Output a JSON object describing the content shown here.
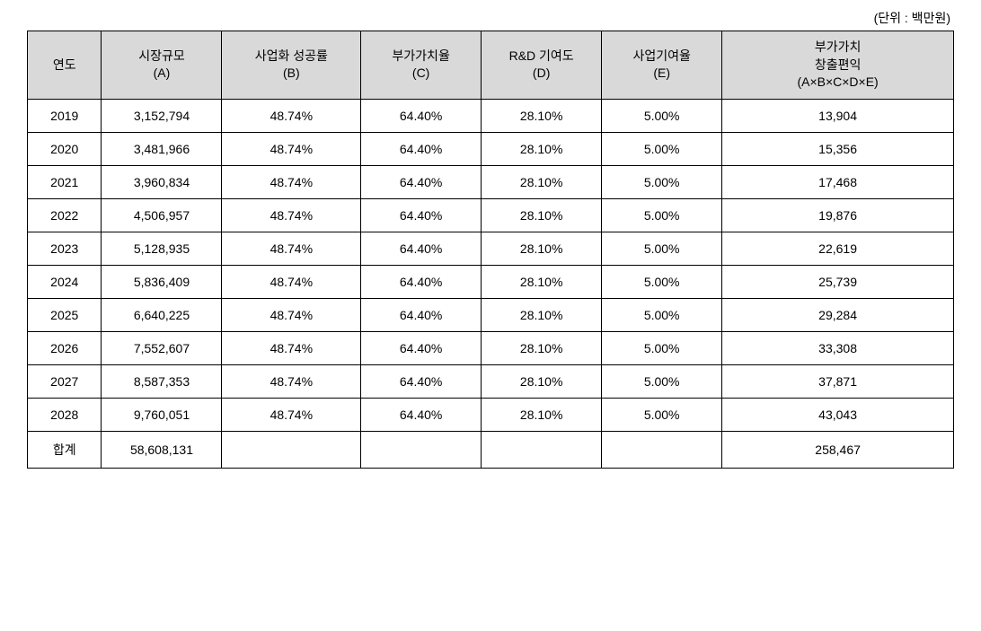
{
  "unit_label": "(단위 : 백만원)",
  "table": {
    "type": "table",
    "background_color": "#ffffff",
    "header_bg_color": "#d9d9d9",
    "border_color": "#000000",
    "text_color": "#000000",
    "font_size": 14,
    "columns": [
      {
        "key": "year",
        "label": "연도",
        "sublabel": "",
        "width": "8%"
      },
      {
        "key": "A",
        "label": "시장규모",
        "sublabel": "(A)",
        "width": "13%"
      },
      {
        "key": "B",
        "label": "사업화 성공률",
        "sublabel": "(B)",
        "width": "15%"
      },
      {
        "key": "C",
        "label": "부가가치율",
        "sublabel": "(C)",
        "width": "13%"
      },
      {
        "key": "D",
        "label": "R&D 기여도",
        "sublabel": "(D)",
        "width": "13%"
      },
      {
        "key": "E",
        "label": "사업기여율",
        "sublabel": "(E)",
        "width": "13%"
      },
      {
        "key": "F",
        "label": "부가가치",
        "sublabel": "창출편익",
        "subsublabel": "(A×B×C×D×E)",
        "width": "25%"
      }
    ],
    "rows": [
      {
        "year": "2019",
        "A": "3,152,794",
        "B": "48.74%",
        "C": "64.40%",
        "D": "28.10%",
        "E": "5.00%",
        "F": "13,904"
      },
      {
        "year": "2020",
        "A": "3,481,966",
        "B": "48.74%",
        "C": "64.40%",
        "D": "28.10%",
        "E": "5.00%",
        "F": "15,356"
      },
      {
        "year": "2021",
        "A": "3,960,834",
        "B": "48.74%",
        "C": "64.40%",
        "D": "28.10%",
        "E": "5.00%",
        "F": "17,468"
      },
      {
        "year": "2022",
        "A": "4,506,957",
        "B": "48.74%",
        "C": "64.40%",
        "D": "28.10%",
        "E": "5.00%",
        "F": "19,876"
      },
      {
        "year": "2023",
        "A": "5,128,935",
        "B": "48.74%",
        "C": "64.40%",
        "D": "28.10%",
        "E": "5.00%",
        "F": "22,619"
      },
      {
        "year": "2024",
        "A": "5,836,409",
        "B": "48.74%",
        "C": "64.40%",
        "D": "28.10%",
        "E": "5.00%",
        "F": "25,739"
      },
      {
        "year": "2025",
        "A": "6,640,225",
        "B": "48.74%",
        "C": "64.40%",
        "D": "28.10%",
        "E": "5.00%",
        "F": "29,284"
      },
      {
        "year": "2026",
        "A": "7,552,607",
        "B": "48.74%",
        "C": "64.40%",
        "D": "28.10%",
        "E": "5.00%",
        "F": "33,308"
      },
      {
        "year": "2027",
        "A": "8,587,353",
        "B": "48.74%",
        "C": "64.40%",
        "D": "28.10%",
        "E": "5.00%",
        "F": "37,871"
      },
      {
        "year": "2028",
        "A": "9,760,051",
        "B": "48.74%",
        "C": "64.40%",
        "D": "28.10%",
        "E": "5.00%",
        "F": "43,043"
      }
    ],
    "total": {
      "label": "합계",
      "A": "58,608,131",
      "B": "",
      "C": "",
      "D": "",
      "E": "",
      "F": "258,467"
    }
  }
}
